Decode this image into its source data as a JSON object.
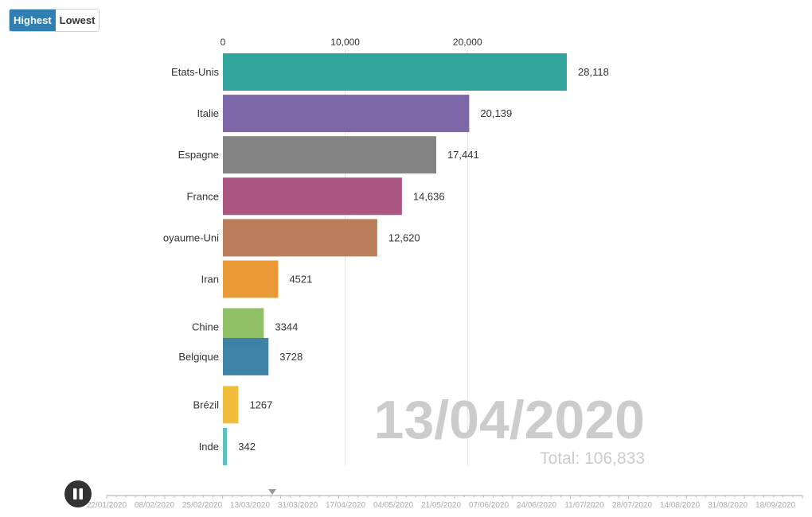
{
  "controls": {
    "highest_label": "Highest",
    "lowest_label": "Lowest",
    "play_state": "pause-icon"
  },
  "overlay": {
    "date": "13/04/2020",
    "total_label": "Total: 106,833"
  },
  "timeline": {
    "labels": [
      "22/01/2020",
      "08/02/2020",
      "25/02/2020",
      "13/03/2020",
      "31/03/2020",
      "17/04/2020",
      "04/05/2020",
      "21/05/2020",
      "07/06/2020",
      "24/06/2020",
      "11/07/2020",
      "28/07/2020",
      "14/08/2020",
      "31/08/2020",
      "18/09/2020"
    ],
    "current_fraction": 0.238
  },
  "chart_data": {
    "type": "bar",
    "orientation": "horizontal",
    "xlim": [
      0,
      30000
    ],
    "x_ticks": [
      0,
      10000,
      20000
    ],
    "x_tick_labels": [
      "0",
      "10,000",
      "20,000"
    ],
    "bars": [
      {
        "label": "Etats-Unis",
        "value": 28118,
        "value_label": "28,118",
        "color": "#2aa198",
        "slot": 0
      },
      {
        "label": "Italie",
        "value": 20139,
        "value_label": "20,139",
        "color": "#7a62a6",
        "slot": 1
      },
      {
        "label": "Espagne",
        "value": 17441,
        "value_label": "17,441",
        "color": "#808080",
        "slot": 2
      },
      {
        "label": "France",
        "value": 14636,
        "value_label": "14,636",
        "color": "#a8507e",
        "slot": 3
      },
      {
        "label": "oyaume-Uni",
        "value": 12620,
        "value_label": "12,620",
        "color": "#b97a56",
        "slot": 4
      },
      {
        "label": "Iran",
        "value": 4521,
        "value_label": "4521",
        "color": "#e8962f",
        "slot": 5
      },
      {
        "label": "Chine",
        "value": 3344,
        "value_label": "3344",
        "color": "#8dbf62",
        "slot": 6.15
      },
      {
        "label": "Belgique",
        "value": 3728,
        "value_label": "3728",
        "color": "#3a7fa6",
        "slot": 6.87
      },
      {
        "label": "Brézil",
        "value": 1267,
        "value_label": "1267",
        "color": "#f0bc34",
        "slot": 8.03
      },
      {
        "label": "Inde",
        "value": 342,
        "value_label": "342",
        "color": "#5bbdbd",
        "slot": 9.04
      }
    ]
  }
}
